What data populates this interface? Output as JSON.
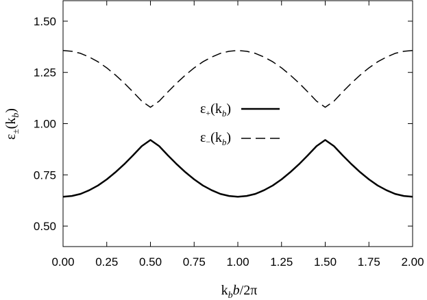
{
  "chart_data": {
    "type": "line",
    "xlabel": "k_b b/2π",
    "ylabel": "ε±(k_b)",
    "xlim": [
      0.0,
      2.0
    ],
    "ylim": [
      0.4,
      1.6
    ],
    "x_ticks": [
      "0.00",
      "0.25",
      "0.50",
      "0.75",
      "1.00",
      "1.25",
      "1.50",
      "1.75",
      "2.00"
    ],
    "y_ticks": [
      "0.50",
      "0.75",
      "1.00",
      "1.25",
      "1.50"
    ],
    "legend_position": "center",
    "grid": false,
    "series": [
      {
        "name": "ε+(k_b)",
        "style": "solid",
        "color": "#000000",
        "x": [
          0.0,
          0.05,
          0.1,
          0.15,
          0.2,
          0.25,
          0.3,
          0.35,
          0.4,
          0.45,
          0.5,
          0.55,
          0.6,
          0.65,
          0.7,
          0.75,
          0.8,
          0.85,
          0.9,
          0.95,
          1.0,
          1.05,
          1.1,
          1.15,
          1.2,
          1.25,
          1.3,
          1.35,
          1.4,
          1.45,
          1.5,
          1.55,
          1.6,
          1.65,
          1.7,
          1.75,
          1.8,
          1.85,
          1.9,
          1.95,
          2.0
        ],
        "y": [
          0.643,
          0.647,
          0.657,
          0.675,
          0.698,
          0.728,
          0.763,
          0.802,
          0.845,
          0.89,
          0.92,
          0.89,
          0.845,
          0.802,
          0.763,
          0.728,
          0.698,
          0.675,
          0.657,
          0.647,
          0.643,
          0.647,
          0.657,
          0.675,
          0.698,
          0.728,
          0.763,
          0.802,
          0.845,
          0.89,
          0.92,
          0.89,
          0.845,
          0.802,
          0.763,
          0.728,
          0.698,
          0.675,
          0.657,
          0.647,
          0.643
        ]
      },
      {
        "name": "ε−(k_b)",
        "style": "dashed",
        "color": "#000000",
        "x": [
          0.0,
          0.05,
          0.1,
          0.15,
          0.2,
          0.25,
          0.3,
          0.35,
          0.4,
          0.45,
          0.5,
          0.55,
          0.6,
          0.65,
          0.7,
          0.75,
          0.8,
          0.85,
          0.9,
          0.95,
          1.0,
          1.05,
          1.1,
          1.15,
          1.2,
          1.25,
          1.3,
          1.35,
          1.4,
          1.45,
          1.5,
          1.55,
          1.6,
          1.65,
          1.7,
          1.75,
          1.8,
          1.85,
          1.9,
          1.95,
          2.0
        ],
        "y": [
          1.357,
          1.353,
          1.343,
          1.325,
          1.302,
          1.272,
          1.237,
          1.198,
          1.155,
          1.11,
          1.08,
          1.11,
          1.155,
          1.198,
          1.237,
          1.272,
          1.302,
          1.325,
          1.343,
          1.353,
          1.357,
          1.353,
          1.343,
          1.325,
          1.302,
          1.272,
          1.237,
          1.198,
          1.155,
          1.11,
          1.08,
          1.11,
          1.155,
          1.198,
          1.237,
          1.272,
          1.302,
          1.325,
          1.343,
          1.353,
          1.357
        ]
      }
    ]
  }
}
